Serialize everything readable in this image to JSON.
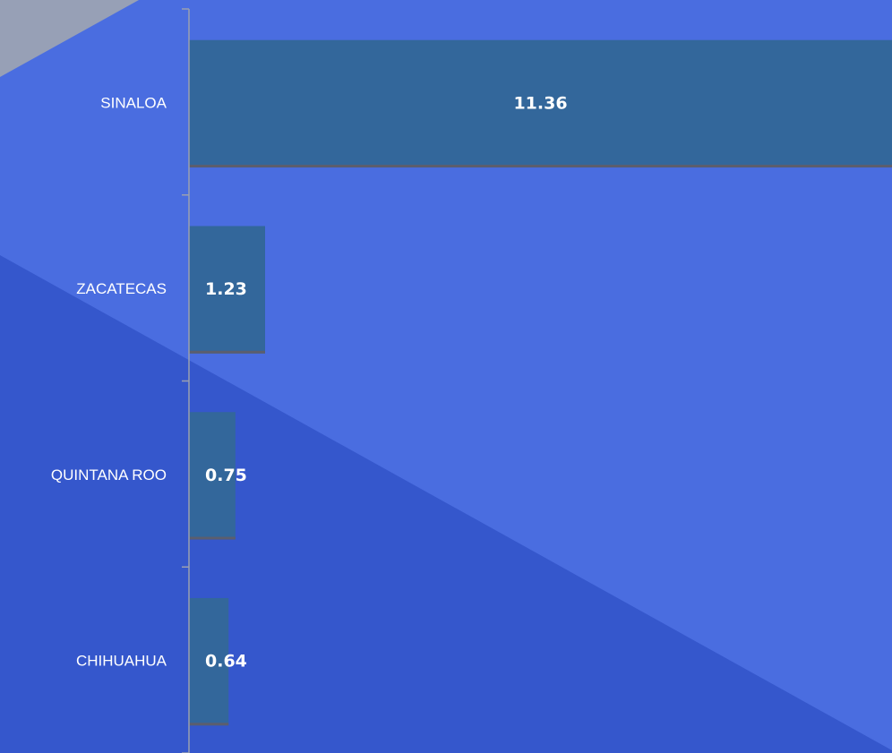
{
  "chart_data": {
    "type": "barh",
    "categories": [
      "SINALOA",
      "ZACATECAS",
      "QUINTANA ROO",
      "CHIHUAHUA"
    ],
    "values": [
      11.36,
      1.23,
      0.75,
      0.64
    ],
    "color": "#33679b"
  }
}
